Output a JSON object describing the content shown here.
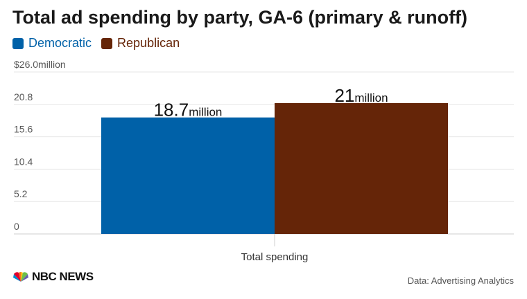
{
  "chart_data": {
    "type": "bar",
    "title": "Total ad spending by party, GA-6 (primary & runoff)",
    "categories": [
      "Total spending"
    ],
    "series": [
      {
        "name": "Democratic",
        "values": [
          18.7
        ],
        "label_value": "18.7",
        "label_unit": "million",
        "color": "#0061a8"
      },
      {
        "name": "Republican",
        "values": [
          21
        ],
        "label_value": "21",
        "label_unit": "million",
        "color": "#652508"
      }
    ],
    "y_ticks": [
      {
        "value": 0,
        "label": "0"
      },
      {
        "value": 5.2,
        "label": "5.2"
      },
      {
        "value": 10.4,
        "label": "10.4"
      },
      {
        "value": 15.6,
        "label": "15.6"
      },
      {
        "value": 20.8,
        "label": "20.8"
      },
      {
        "value": 26.0,
        "label": "$26.0million"
      }
    ],
    "ylim": [
      0,
      26.0
    ],
    "grid": true,
    "legend_position": "top-left"
  },
  "source": "Data: Advertising Analytics",
  "logo": {
    "text": "NBC NEWS",
    "icon": "peacock-icon"
  }
}
